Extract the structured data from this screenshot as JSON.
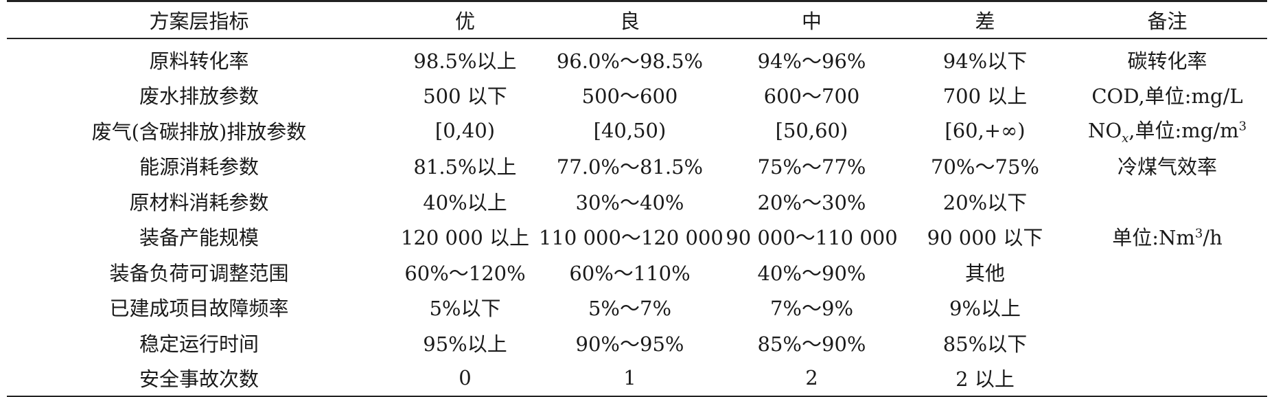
{
  "table": {
    "headers": [
      "方案层指标",
      "优",
      "良",
      "中",
      "差",
      "备注"
    ],
    "rows": [
      [
        "原料转化率",
        "98.5%以上",
        "96.0%～98.5%",
        "94%～96%",
        "94%以下",
        "碳转化率"
      ],
      [
        "废水排放参数",
        "500 以下",
        "500～600",
        "600～700",
        "700 以上",
        "COD,单位:mg/L"
      ],
      [
        "废气(含碳排放)排放参数",
        "[0,40)",
        "[40,50)",
        "[50,60)",
        "[60,+∞)",
        "NOx,单位:mg/m3"
      ],
      [
        "能源消耗参数",
        "81.5%以上",
        "77.0%～81.5%",
        "75%～77%",
        "70%～75%",
        "冷煤气效率"
      ],
      [
        "原材料消耗参数",
        "40%以上",
        "30%～40%",
        "20%～30%",
        "20%以下",
        ""
      ],
      [
        "装备产能规模",
        "120 000 以上",
        "110 000～120 000",
        "90 000～110 000",
        "90 000 以下",
        "单位:Nm3/h"
      ],
      [
        "装备负荷可调整范围",
        "60%～120%",
        "60%～110%",
        "40%～90%",
        "其他",
        ""
      ],
      [
        "已建成项目故障频率",
        "5%以下",
        "5%～7%",
        "7%～9%",
        "9%以上",
        ""
      ],
      [
        "稳定运行时间",
        "95%以上",
        "90%～95%",
        "85%～90%",
        "85%以下",
        ""
      ],
      [
        "安全事故次数",
        "0",
        "1",
        "2",
        "2 以上",
        ""
      ]
    ],
    "remark_parts": {
      "nox_prefix": "NO",
      "nox_sub": "x",
      "nox_suffix": ",单位:mg/m",
      "nox_sup": "3",
      "cap_prefix": "单位:Nm",
      "cap_sup": "3",
      "cap_suffix": "/h"
    }
  }
}
